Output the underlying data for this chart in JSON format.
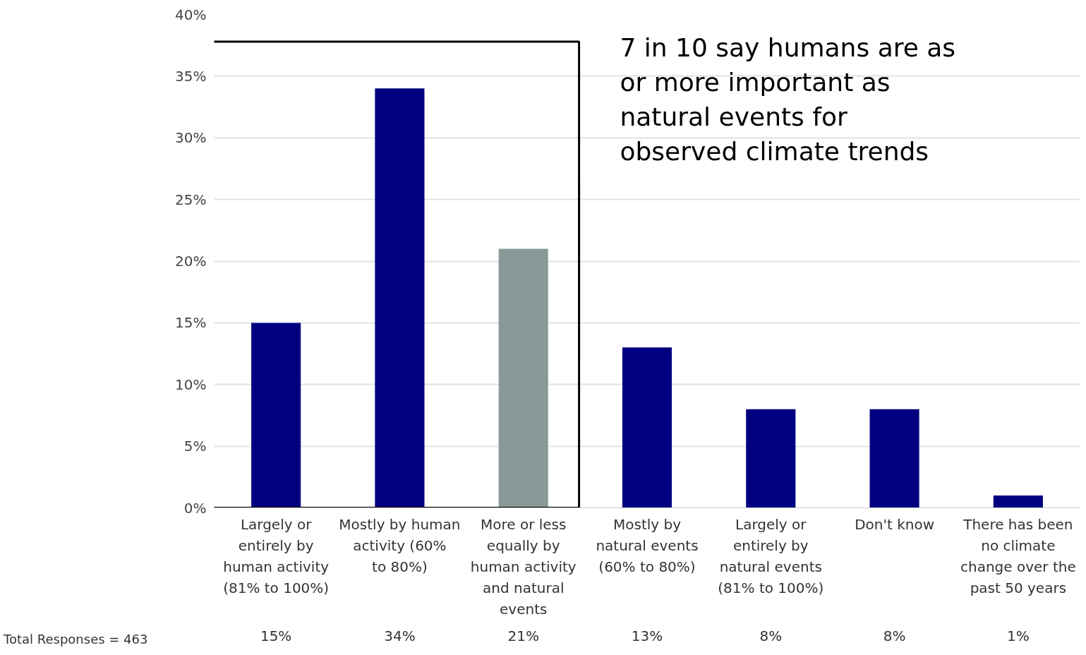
{
  "chart_data": {
    "type": "bar",
    "categories": [
      "Largely or entirely by human activity (81% to 100%)",
      "Mostly by human activity (60% to 80%)",
      "More or less equally by human activity and natural events",
      "Mostly by natural events (60% to 80%)",
      "Largely or entirely by natural events (81% to 100%)",
      "Don't know",
      "There has been no climate change over the past 50 years"
    ],
    "values": [
      15,
      34,
      21,
      13,
      8,
      8,
      1
    ],
    "colors": [
      "#000080",
      "#000080",
      "#889a98",
      "#000080",
      "#000080",
      "#000080",
      "#000080"
    ],
    "value_labels": [
      "15%",
      "34%",
      "21%",
      "13%",
      "8%",
      "8%",
      "1%"
    ],
    "ylim": [
      0,
      40
    ],
    "yticks": [
      {
        "value": 0,
        "label": "0%"
      },
      {
        "value": 5,
        "label": "5%"
      },
      {
        "value": 10,
        "label": "10%"
      },
      {
        "value": 15,
        "label": "15%"
      },
      {
        "value": 20,
        "label": "20%"
      },
      {
        "value": 25,
        "label": "25%"
      },
      {
        "value": 30,
        "label": "30%"
      },
      {
        "value": 35,
        "label": "35%"
      },
      {
        "value": 40,
        "label": "40%"
      }
    ],
    "grid": "y",
    "annotations": [
      "7 in 10 say humans are as or more important as natural events for observed climate trends",
      "Total Responses = 463"
    ]
  }
}
